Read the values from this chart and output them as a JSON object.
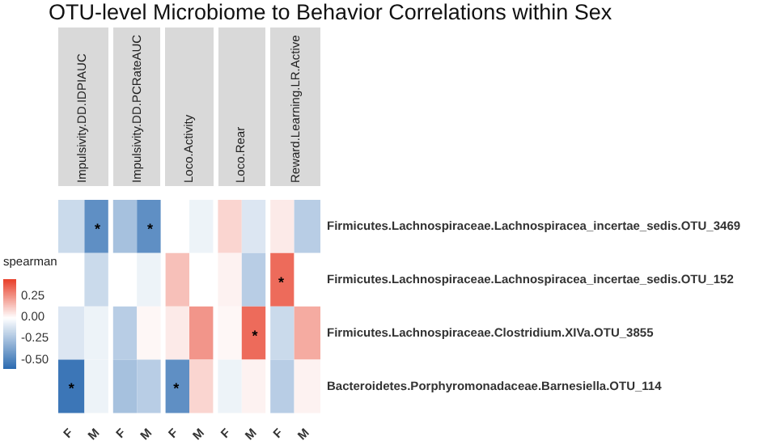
{
  "chart_data": {
    "type": "heatmap",
    "title": "OTU-level Microbiome to Behavior Correlations within Sex",
    "clabel": "spearman",
    "clim": [
      -0.6,
      0.45
    ],
    "cticks": [
      {
        "value": 0.25,
        "label": "0.25"
      },
      {
        "value": 0,
        "label": "0.00"
      },
      {
        "value": -0.25,
        "label": "-0.25"
      },
      {
        "value": -0.5,
        "label": "-0.50"
      }
    ],
    "annotations": [
      "Impulsivity.DD.IDPIAUC",
      "Impulsivity.DD.PCRateAUC",
      "Loco.Activity",
      "Loco.Rear",
      "Reward.Learning.LR.Active"
    ],
    "categories": [
      "F",
      "M",
      "F",
      "M",
      "F",
      "M",
      "F",
      "M",
      "F",
      "M"
    ],
    "y_categories": [
      "Firmicutes.Lachnospiraceae.Lachnospiracea_incertae_sedis.OTU_3469",
      "Firmicutes.Lachnospiraceae.Lachnospiracea_incertae_sedis.OTU_152",
      "Firmicutes.Lachnospiraceae.Clostridium.XIVa.OTU_3855",
      "Bacteroidetes.Porphyromonadaceae.Barnesiella.OTU_114"
    ],
    "cells": [
      [
        -0.15,
        -0.45,
        -0.25,
        -0.45,
        0,
        -0.05,
        0.1,
        -0.1,
        0.05,
        -0.2
      ],
      [
        0,
        -0.15,
        0,
        -0.05,
        0.15,
        0,
        0.03,
        -0.2,
        0.35,
        0
      ],
      [
        -0.1,
        -0.05,
        -0.2,
        0.02,
        0.05,
        0.25,
        0.02,
        0.35,
        -0.15,
        0.2
      ],
      [
        -0.55,
        -0.05,
        -0.25,
        -0.2,
        -0.45,
        0.1,
        -0.05,
        0.03,
        -0.2,
        0.03
      ]
    ],
    "cell_labels": [
      [
        null,
        "*",
        null,
        "*",
        null,
        null,
        null,
        null,
        null,
        null
      ],
      [
        null,
        null,
        null,
        null,
        null,
        null,
        null,
        null,
        "*",
        null
      ],
      [
        null,
        null,
        null,
        null,
        null,
        null,
        null,
        "*",
        null,
        null
      ],
      [
        "*",
        null,
        null,
        null,
        "*",
        null,
        null,
        null,
        null,
        null
      ]
    ]
  }
}
